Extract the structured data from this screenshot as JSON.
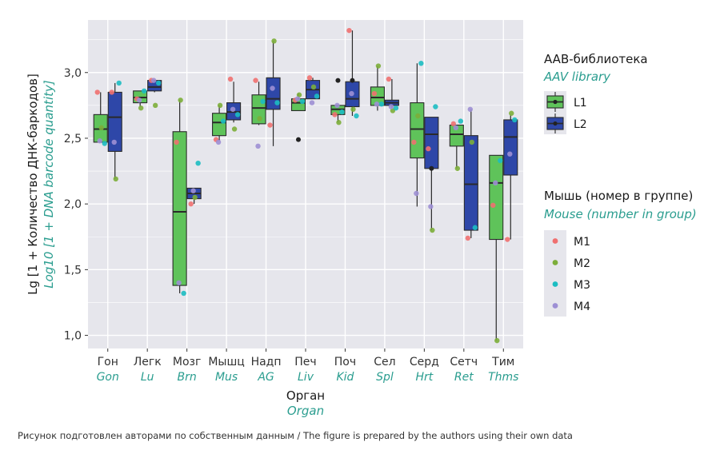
{
  "chart_data": {
    "type": "box",
    "title": "",
    "xlabel": "Орган",
    "xlabel_en": "Organ",
    "ylabel": "Lg [1 + Количество ДНК-баркодов]",
    "ylabel_en": "Log10 [1 + DNA barcode quantity]",
    "ylim": [
      0.9,
      3.4
    ],
    "yticks": [
      1.0,
      1.5,
      2.0,
      2.5,
      3.0
    ],
    "ytick_labels": [
      "1,0",
      "1,5",
      "2,0",
      "2,5",
      "3,0"
    ],
    "grid": true,
    "legend_position": "right",
    "categories": [
      "Гон",
      "Легк",
      "Мозг",
      "Мышц",
      "Надп",
      "Печ",
      "Поч",
      "Сел",
      "Серд",
      "Сетч",
      "Тим"
    ],
    "categories_en": [
      "Gon",
      "Lu",
      "Brn",
      "Mus",
      "AG",
      "Liv",
      "Kid",
      "Spl",
      "Hrt",
      "Ret",
      "Thms"
    ],
    "box_legend": {
      "title": "AAB-библиотека",
      "title_en": "AAV library",
      "items": [
        {
          "name": "L1",
          "color": "#5fc35a"
        },
        {
          "name": "L2",
          "color": "#2e47a8"
        }
      ]
    },
    "point_legend": {
      "title": "Мышь (номер в группе)",
      "title_en": "Mouse (number in group)",
      "items": [
        {
          "name": "M1",
          "color": "#f07070"
        },
        {
          "name": "M2",
          "color": "#7cae3a"
        },
        {
          "name": "M3",
          "color": "#1cbdc2"
        },
        {
          "name": "M4",
          "color": "#9d8fd4"
        }
      ]
    },
    "series": [
      {
        "name": "L1",
        "boxes": [
          {
            "low": 2.47,
            "q1": 2.47,
            "median": 2.57,
            "q3": 2.68,
            "high": 2.85
          },
          {
            "low": 2.74,
            "q1": 2.77,
            "median": 2.81,
            "q3": 2.86,
            "high": 2.86
          },
          {
            "low": 1.32,
            "q1": 1.38,
            "median": 1.94,
            "q3": 2.55,
            "high": 2.79
          },
          {
            "low": 2.48,
            "q1": 2.52,
            "median": 2.62,
            "q3": 2.69,
            "high": 2.75
          },
          {
            "low": 2.6,
            "q1": 2.61,
            "median": 2.73,
            "q3": 2.83,
            "high": 2.93
          },
          {
            "low": 2.71,
            "q1": 2.71,
            "median": 2.77,
            "q3": 2.8,
            "high": 2.84
          },
          {
            "low": 2.62,
            "q1": 2.68,
            "median": 2.72,
            "q3": 2.75,
            "high": 2.75
          },
          {
            "low": 2.71,
            "q1": 2.75,
            "median": 2.81,
            "q3": 2.89,
            "high": 3.05
          },
          {
            "low": 1.98,
            "q1": 2.35,
            "median": 2.57,
            "q3": 2.77,
            "high": 3.07
          },
          {
            "low": 2.27,
            "q1": 2.44,
            "median": 2.53,
            "q3": 2.6,
            "high": 2.6
          },
          {
            "low": 0.96,
            "q1": 1.73,
            "median": 2.16,
            "q3": 2.37,
            "high": 2.37
          }
        ]
      },
      {
        "name": "L2",
        "boxes": [
          {
            "low": 2.19,
            "q1": 2.4,
            "median": 2.66,
            "q3": 2.85,
            "high": 2.92
          },
          {
            "low": 2.85,
            "q1": 2.86,
            "median": 2.89,
            "q3": 2.94,
            "high": 2.94
          },
          {
            "low": 2.0,
            "q1": 2.04,
            "median": 2.08,
            "q3": 2.12,
            "high": 2.12
          },
          {
            "low": 2.62,
            "q1": 2.64,
            "median": 2.7,
            "q3": 2.77,
            "high": 2.93
          },
          {
            "low": 2.44,
            "q1": 2.72,
            "median": 2.8,
            "q3": 2.96,
            "high": 3.24
          },
          {
            "low": 2.8,
            "q1": 2.8,
            "median": 2.87,
            "q3": 2.94,
            "high": 2.96
          },
          {
            "low": 2.67,
            "q1": 2.74,
            "median": 2.8,
            "q3": 2.93,
            "high": 3.32
          },
          {
            "low": 2.73,
            "q1": 2.75,
            "median": 2.77,
            "q3": 2.79,
            "high": 2.95
          },
          {
            "low": 1.8,
            "q1": 2.27,
            "median": 2.53,
            "q3": 2.66,
            "high": 2.66
          },
          {
            "low": 1.74,
            "q1": 1.8,
            "median": 2.15,
            "q3": 2.52,
            "high": 2.72
          },
          {
            "low": 1.73,
            "q1": 2.22,
            "median": 2.51,
            "q3": 2.64,
            "high": 2.68
          }
        ]
      }
    ],
    "points": [
      {
        "cat": 0,
        "lib": "L1",
        "mouse": "M1",
        "y": 2.85
      },
      {
        "cat": 0,
        "lib": "L1",
        "mouse": "M2",
        "y": 2.58
      },
      {
        "cat": 0,
        "lib": "L1",
        "mouse": "M3",
        "y": 2.46
      },
      {
        "cat": 0,
        "lib": "L1",
        "mouse": "M4",
        "y": 2.48
      },
      {
        "cat": 0,
        "lib": "L2",
        "mouse": "M1",
        "y": 2.85
      },
      {
        "cat": 0,
        "lib": "L2",
        "mouse": "M2",
        "y": 2.19
      },
      {
        "cat": 0,
        "lib": "L2",
        "mouse": "M3",
        "y": 2.92
      },
      {
        "cat": 0,
        "lib": "L2",
        "mouse": "M4",
        "y": 2.47
      },
      {
        "cat": 1,
        "lib": "L1",
        "mouse": "M1",
        "y": 2.8
      },
      {
        "cat": 1,
        "lib": "L1",
        "mouse": "M2",
        "y": 2.73
      },
      {
        "cat": 1,
        "lib": "L1",
        "mouse": "M3",
        "y": 2.86
      },
      {
        "cat": 1,
        "lib": "L1",
        "mouse": "M4",
        "y": 2.79
      },
      {
        "cat": 1,
        "lib": "L2",
        "mouse": "M1",
        "y": 2.94
      },
      {
        "cat": 1,
        "lib": "L2",
        "mouse": "M2",
        "y": 2.75
      },
      {
        "cat": 1,
        "lib": "L2",
        "mouse": "M3",
        "y": 2.92
      },
      {
        "cat": 1,
        "lib": "L2",
        "mouse": "M4",
        "y": 2.94
      },
      {
        "cat": 2,
        "lib": "L1",
        "mouse": "M1",
        "y": 2.47
      },
      {
        "cat": 2,
        "lib": "L1",
        "mouse": "M2",
        "y": 2.79
      },
      {
        "cat": 2,
        "lib": "L1",
        "mouse": "M3",
        "y": 1.32
      },
      {
        "cat": 2,
        "lib": "L1",
        "mouse": "M4",
        "y": 1.4
      },
      {
        "cat": 2,
        "lib": "L2",
        "mouse": "M1",
        "y": 2.0
      },
      {
        "cat": 2,
        "lib": "L2",
        "mouse": "M2",
        "y": 2.05
      },
      {
        "cat": 2,
        "lib": "L2",
        "mouse": "M3",
        "y": 2.31
      },
      {
        "cat": 2,
        "lib": "L2",
        "mouse": "M4",
        "y": 2.1
      },
      {
        "cat": 3,
        "lib": "L1",
        "mouse": "M1",
        "y": 2.49
      },
      {
        "cat": 3,
        "lib": "L1",
        "mouse": "M2",
        "y": 2.75
      },
      {
        "cat": 3,
        "lib": "L1",
        "mouse": "M3",
        "y": 2.63
      },
      {
        "cat": 3,
        "lib": "L1",
        "mouse": "M4",
        "y": 2.47
      },
      {
        "cat": 3,
        "lib": "L2",
        "mouse": "M1",
        "y": 2.95
      },
      {
        "cat": 3,
        "lib": "L2",
        "mouse": "M2",
        "y": 2.57
      },
      {
        "cat": 3,
        "lib": "L2",
        "mouse": "M3",
        "y": 2.68
      },
      {
        "cat": 3,
        "lib": "L2",
        "mouse": "M4",
        "y": 2.72
      },
      {
        "cat": 4,
        "lib": "L1",
        "mouse": "M1",
        "y": 2.94
      },
      {
        "cat": 4,
        "lib": "L1",
        "mouse": "M2",
        "y": 2.65
      },
      {
        "cat": 4,
        "lib": "L1",
        "mouse": "M3",
        "y": 2.78
      },
      {
        "cat": 4,
        "lib": "L1",
        "mouse": "M4",
        "y": 2.44
      },
      {
        "cat": 4,
        "lib": "L2",
        "mouse": "M1",
        "y": 2.6
      },
      {
        "cat": 4,
        "lib": "L2",
        "mouse": "M2",
        "y": 3.24
      },
      {
        "cat": 4,
        "lib": "L2",
        "mouse": "M3",
        "y": 2.77
      },
      {
        "cat": 4,
        "lib": "L2",
        "mouse": "M4",
        "y": 2.88
      },
      {
        "cat": 5,
        "lib": "L1",
        "mouse": "M1",
        "y": 2.79
      },
      {
        "cat": 5,
        "lib": "L1",
        "mouse": "M2",
        "y": 2.83
      },
      {
        "cat": 5,
        "lib": "L1",
        "mouse": "M3",
        "y": 2.78
      },
      {
        "cat": 5,
        "lib": "L1",
        "mouse": "M4",
        "y": 2.8
      },
      {
        "cat": 5,
        "lib": "L2",
        "mouse": "M1",
        "y": 2.96
      },
      {
        "cat": 5,
        "lib": "L2",
        "mouse": "M2",
        "y": 2.89
      },
      {
        "cat": 5,
        "lib": "L2",
        "mouse": "M3",
        "y": 2.82
      },
      {
        "cat": 5,
        "lib": "L2",
        "mouse": "M4",
        "y": 2.77
      },
      {
        "cat": 6,
        "lib": "L1",
        "mouse": "M1",
        "y": 2.68
      },
      {
        "cat": 6,
        "lib": "L1",
        "mouse": "M2",
        "y": 2.62
      },
      {
        "cat": 6,
        "lib": "L1",
        "mouse": "M3",
        "y": 2.7
      },
      {
        "cat": 6,
        "lib": "L1",
        "mouse": "M4",
        "y": 2.75
      },
      {
        "cat": 6,
        "lib": "L2",
        "mouse": "M1",
        "y": 3.32
      },
      {
        "cat": 6,
        "lib": "L2",
        "mouse": "M2",
        "y": 2.72
      },
      {
        "cat": 6,
        "lib": "L2",
        "mouse": "M3",
        "y": 2.67
      },
      {
        "cat": 6,
        "lib": "L2",
        "mouse": "M4",
        "y": 2.84
      },
      {
        "cat": 7,
        "lib": "L1",
        "mouse": "M1",
        "y": 2.84
      },
      {
        "cat": 7,
        "lib": "L1",
        "mouse": "M2",
        "y": 3.05
      },
      {
        "cat": 7,
        "lib": "L1",
        "mouse": "M3",
        "y": 2.76
      },
      {
        "cat": 7,
        "lib": "L1",
        "mouse": "M4",
        "y": 2.76
      },
      {
        "cat": 7,
        "lib": "L2",
        "mouse": "M1",
        "y": 2.95
      },
      {
        "cat": 7,
        "lib": "L2",
        "mouse": "M2",
        "y": 2.71
      },
      {
        "cat": 7,
        "lib": "L2",
        "mouse": "M3",
        "y": 2.73
      },
      {
        "cat": 7,
        "lib": "L2",
        "mouse": "M4",
        "y": 2.74
      },
      {
        "cat": 8,
        "lib": "L1",
        "mouse": "M1",
        "y": 2.47
      },
      {
        "cat": 8,
        "lib": "L1",
        "mouse": "M2",
        "y": 2.67
      },
      {
        "cat": 8,
        "lib": "L1",
        "mouse": "M3",
        "y": 3.07
      },
      {
        "cat": 8,
        "lib": "L1",
        "mouse": "M4",
        "y": 2.08
      },
      {
        "cat": 8,
        "lib": "L2",
        "mouse": "M1",
        "y": 2.42
      },
      {
        "cat": 8,
        "lib": "L2",
        "mouse": "M2",
        "y": 1.8
      },
      {
        "cat": 8,
        "lib": "L2",
        "mouse": "M3",
        "y": 2.74
      },
      {
        "cat": 8,
        "lib": "L2",
        "mouse": "M4",
        "y": 1.98
      },
      {
        "cat": 9,
        "lib": "L1",
        "mouse": "M1",
        "y": 2.61
      },
      {
        "cat": 9,
        "lib": "L1",
        "mouse": "M2",
        "y": 2.27
      },
      {
        "cat": 9,
        "lib": "L1",
        "mouse": "M3",
        "y": 2.63
      },
      {
        "cat": 9,
        "lib": "L1",
        "mouse": "M4",
        "y": 2.58
      },
      {
        "cat": 9,
        "lib": "L2",
        "mouse": "M1",
        "y": 1.74
      },
      {
        "cat": 9,
        "lib": "L2",
        "mouse": "M2",
        "y": 2.47
      },
      {
        "cat": 9,
        "lib": "L2",
        "mouse": "M3",
        "y": 1.82
      },
      {
        "cat": 9,
        "lib": "L2",
        "mouse": "M4",
        "y": 2.72
      },
      {
        "cat": 10,
        "lib": "L1",
        "mouse": "M1",
        "y": 1.99
      },
      {
        "cat": 10,
        "lib": "L1",
        "mouse": "M2",
        "y": 0.96
      },
      {
        "cat": 10,
        "lib": "L1",
        "mouse": "M3",
        "y": 2.33
      },
      {
        "cat": 10,
        "lib": "L1",
        "mouse": "M4",
        "y": 2.16
      },
      {
        "cat": 10,
        "lib": "L2",
        "mouse": "M1",
        "y": 1.73
      },
      {
        "cat": 10,
        "lib": "L2",
        "mouse": "M2",
        "y": 2.69
      },
      {
        "cat": 10,
        "lib": "L2",
        "mouse": "M3",
        "y": 2.64
      },
      {
        "cat": 10,
        "lib": "L2",
        "mouse": "M4",
        "y": 2.38
      }
    ],
    "outliers": [
      {
        "cat": 5,
        "lib": "L1",
        "y": 2.49
      },
      {
        "cat": 6,
        "lib": "L1",
        "y": 2.94
      },
      {
        "cat": 6,
        "lib": "L2",
        "y": 2.94
      },
      {
        "cat": 8,
        "lib": "L2",
        "y": 2.27
      }
    ]
  },
  "colors": {
    "panel_bg": "#e6e6ec",
    "grid": "#ffffff",
    "box_outline": "#2a2a2a",
    "legend_key_bg": "#e6e6ec"
  },
  "caption": "Рисунок подготовлен авторами по собственным данным / The figure is prepared by the authors using their own data"
}
